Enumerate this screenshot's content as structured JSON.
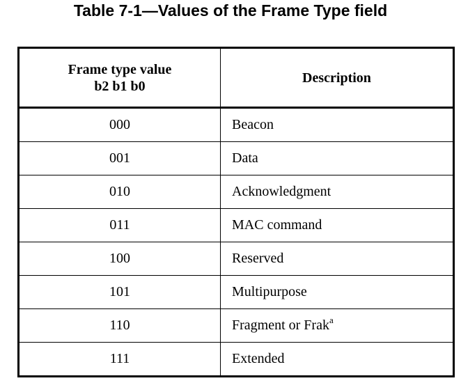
{
  "title": "Table 7-1—Values of the Frame Type field",
  "table": {
    "header_col1_line1": "Frame type value",
    "header_col1_line2": "b2 b1 b0",
    "header_col2": "Description",
    "rows": [
      {
        "value": "000",
        "description": "Beacon",
        "note": ""
      },
      {
        "value": "001",
        "description": "Data",
        "note": ""
      },
      {
        "value": "010",
        "description": "Acknowledgment",
        "note": ""
      },
      {
        "value": "011",
        "description": "MAC command",
        "note": ""
      },
      {
        "value": "100",
        "description": "Reserved",
        "note": ""
      },
      {
        "value": "101",
        "description": "Multipurpose",
        "note": ""
      },
      {
        "value": "110",
        "description": "Fragment or Frak",
        "note": "a"
      },
      {
        "value": "111",
        "description": "Extended",
        "note": ""
      }
    ]
  }
}
